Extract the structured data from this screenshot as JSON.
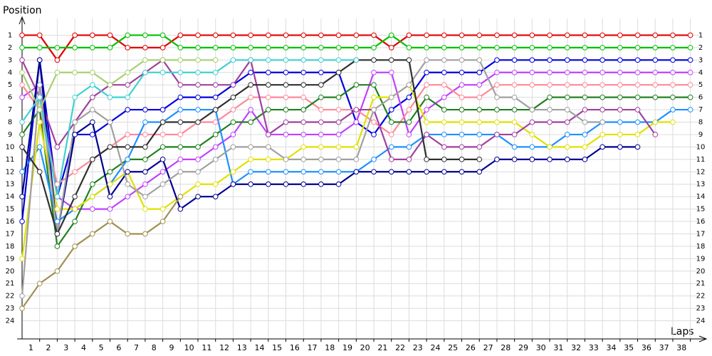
{
  "chart_data": {
    "type": "line",
    "ylabel": "Position",
    "xlabel": "Laps",
    "xlim": [
      0,
      38.5
    ],
    "ylim": [
      0,
      25
    ],
    "inverted_y": true,
    "grid": true,
    "xticks": [
      {
        "value": 0.5,
        "label": "1"
      },
      {
        "value": 1.5,
        "label": "2"
      },
      {
        "value": 2.5,
        "label": "3"
      },
      {
        "value": 3.5,
        "label": "4"
      },
      {
        "value": 4.5,
        "label": "5"
      },
      {
        "value": 5.5,
        "label": "6"
      },
      {
        "value": 6.5,
        "label": "7"
      },
      {
        "value": 7.5,
        "label": "8"
      },
      {
        "value": 8.5,
        "label": "9"
      },
      {
        "value": 9.5,
        "label": "10"
      },
      {
        "value": 10.5,
        "label": "11"
      },
      {
        "value": 11.5,
        "label": "12"
      },
      {
        "value": 12.5,
        "label": "13"
      },
      {
        "value": 13.5,
        "label": "14"
      },
      {
        "value": 14.5,
        "label": "15"
      },
      {
        "value": 15.5,
        "label": "16"
      },
      {
        "value": 16.5,
        "label": "17"
      },
      {
        "value": 17.5,
        "label": "18"
      },
      {
        "value": 18.5,
        "label": "19"
      },
      {
        "value": 19.5,
        "label": "20"
      },
      {
        "value": 20.5,
        "label": "21"
      },
      {
        "value": 21.5,
        "label": "22"
      },
      {
        "value": 22.5,
        "label": "23"
      },
      {
        "value": 23.5,
        "label": "24"
      },
      {
        "value": 24.5,
        "label": "25"
      },
      {
        "value": 25.5,
        "label": "26"
      },
      {
        "value": 26.5,
        "label": "27"
      },
      {
        "value": 27.5,
        "label": "28"
      },
      {
        "value": 28.5,
        "label": "29"
      },
      {
        "value": 29.5,
        "label": "30"
      },
      {
        "value": 30.5,
        "label": "31"
      },
      {
        "value": 31.5,
        "label": "32"
      },
      {
        "value": 32.5,
        "label": "33"
      },
      {
        "value": 33.5,
        "label": "34"
      },
      {
        "value": 34.5,
        "label": "35"
      },
      {
        "value": 35.5,
        "label": "36"
      },
      {
        "value": 36.5,
        "label": "37"
      },
      {
        "value": 37.5,
        "label": "38"
      }
    ],
    "yticks": [
      1,
      2,
      3,
      4,
      5,
      6,
      7,
      8,
      9,
      10,
      11,
      12,
      13,
      14,
      15,
      16,
      17,
      18,
      19,
      20,
      21,
      22,
      23,
      24
    ],
    "x": [
      0,
      1,
      2,
      3,
      4,
      5,
      6,
      7,
      8,
      9,
      10,
      11,
      12,
      13,
      14,
      15,
      16,
      17,
      18,
      19,
      20,
      21,
      22,
      23,
      24,
      25,
      26,
      27,
      28,
      29,
      30,
      31,
      32,
      33,
      34,
      35,
      36,
      37,
      38
    ],
    "series": [
      {
        "color": "#e00000",
        "values": [
          1,
          1,
          3,
          1,
          1,
          1,
          2,
          2,
          2,
          1,
          1,
          1,
          1,
          1,
          1,
          1,
          1,
          1,
          1,
          1,
          1,
          2,
          1,
          1,
          1,
          1,
          1,
          1,
          1,
          1,
          1,
          1,
          1,
          1,
          1,
          1,
          1,
          1,
          1
        ]
      },
      {
        "color": "#00c000",
        "values": [
          2,
          2,
          2,
          2,
          2,
          2,
          1,
          1,
          1,
          2,
          2,
          2,
          2,
          2,
          2,
          2,
          2,
          2,
          2,
          2,
          2,
          1,
          2,
          2,
          2,
          2,
          2,
          2,
          2,
          2,
          2,
          2,
          2,
          2,
          2,
          2,
          2,
          2,
          2
        ]
      },
      {
        "color": "#0000e0",
        "values": [
          16,
          3,
          14,
          9,
          9,
          8,
          7,
          7,
          7,
          6,
          6,
          6,
          5,
          4,
          4,
          4,
          4,
          4,
          4,
          8,
          9,
          7,
          6,
          4,
          4,
          4,
          4,
          3,
          3,
          3,
          3,
          3,
          3,
          3,
          3,
          3,
          3,
          3,
          3
        ]
      },
      {
        "color": "#c040ff",
        "values": [
          6,
          5,
          14,
          15,
          15,
          15,
          14,
          13,
          12,
          11,
          11,
          10,
          9,
          7,
          9,
          9,
          9,
          9,
          9,
          8,
          4,
          4,
          9,
          7,
          6,
          5,
          5,
          4,
          4,
          4,
          4,
          4,
          4,
          4,
          4,
          4,
          4,
          4,
          4
        ]
      },
      {
        "color": "#ff8899",
        "values": [
          5,
          7,
          13,
          12,
          11,
          10,
          9,
          9,
          9,
          9,
          8,
          8,
          7,
          6,
          6,
          6,
          6,
          7,
          7,
          7,
          8,
          9,
          7,
          5,
          5,
          6,
          6,
          5,
          5,
          5,
          5,
          5,
          5,
          5,
          5,
          5,
          5,
          5,
          5
        ]
      },
      {
        "color": "#208020",
        "values": [
          9,
          7,
          18,
          16,
          13,
          12,
          11,
          11,
          10,
          10,
          10,
          9,
          8,
          8,
          7,
          7,
          7,
          6,
          6,
          5,
          5,
          8,
          8,
          6,
          7,
          7,
          7,
          7,
          7,
          7,
          6,
          6,
          6,
          6,
          6,
          6,
          6,
          6,
          6
        ]
      },
      {
        "color": "#1e90ff",
        "values": [
          12,
          10,
          16,
          15,
          14,
          13,
          11,
          8,
          8,
          7,
          7,
          7,
          13,
          12,
          12,
          12,
          12,
          12,
          12,
          12,
          11,
          10,
          10,
          9,
          9,
          9,
          9,
          9,
          10,
          10,
          10,
          9,
          9,
          8,
          8,
          8,
          8,
          7,
          7
        ]
      },
      {
        "color": "#e0e000",
        "values": [
          19,
          8,
          15,
          15,
          14,
          13,
          12,
          15,
          15,
          14,
          13,
          13,
          12,
          11,
          11,
          11,
          10,
          10,
          10,
          10,
          6,
          6,
          5,
          8,
          8,
          8,
          8,
          8,
          8,
          9,
          10,
          10,
          10,
          9,
          9,
          9,
          8,
          8,
          null
        ]
      },
      {
        "color": "#a040a0",
        "values": [
          3,
          6,
          10,
          8,
          6,
          5,
          5,
          4,
          3,
          5,
          5,
          5,
          5,
          3,
          9,
          8,
          8,
          8,
          8,
          7,
          7,
          11,
          11,
          9,
          10,
          10,
          10,
          9,
          9,
          8,
          8,
          8,
          7,
          7,
          7,
          7,
          9,
          null,
          null
        ]
      },
      {
        "color": "#000090",
        "values": [
          14,
          3,
          17,
          9,
          8,
          14,
          12,
          12,
          11,
          15,
          14,
          14,
          13,
          13,
          13,
          13,
          13,
          13,
          13,
          12,
          12,
          12,
          12,
          12,
          12,
          12,
          12,
          11,
          11,
          11,
          11,
          11,
          11,
          10,
          10,
          10,
          null,
          null,
          null
        ]
      },
      {
        "color": "#a0a0a0",
        "values": [
          22,
          5,
          17,
          8,
          7,
          8,
          13,
          14,
          13,
          12,
          12,
          11,
          10,
          10,
          10,
          11,
          11,
          11,
          11,
          11,
          7,
          6,
          5,
          3,
          3,
          3,
          3,
          6,
          6,
          7,
          7,
          7,
          8,
          8,
          null,
          null,
          null,
          null,
          null
        ]
      },
      {
        "color": "#303030",
        "values": [
          10,
          12,
          17,
          14,
          11,
          10,
          10,
          10,
          8,
          8,
          8,
          7,
          6,
          5,
          5,
          5,
          5,
          5,
          4,
          3,
          3,
          3,
          3,
          11,
          11,
          11,
          11,
          null,
          null,
          null,
          null,
          null,
          null,
          null,
          null,
          null,
          null,
          null,
          null
        ]
      },
      {
        "color": "#40d0d0",
        "values": [
          8,
          6,
          14,
          6,
          5,
          6,
          6,
          4,
          4,
          4,
          4,
          4,
          3,
          3,
          3,
          3,
          3,
          3,
          3,
          3,
          null,
          null,
          null,
          null,
          null,
          null,
          null,
          null,
          null,
          null,
          null,
          null,
          null,
          null,
          null,
          null,
          null,
          null,
          null
        ]
      },
      {
        "color": "#a8d070",
        "values": [
          4,
          7,
          4,
          4,
          4,
          5,
          4,
          3,
          3,
          3,
          3,
          3,
          null,
          null,
          null,
          null,
          null,
          null,
          null,
          null,
          null,
          null,
          null,
          null,
          null,
          null,
          null,
          null,
          null,
          null,
          null,
          null,
          null,
          null,
          null,
          null,
          null,
          null,
          null
        ]
      },
      {
        "color": "#a09050",
        "values": [
          23,
          21,
          20,
          18,
          17,
          16,
          17,
          17,
          16,
          14,
          null,
          null,
          null,
          null,
          null,
          null,
          null,
          null,
          null,
          null,
          null,
          null,
          null,
          null,
          null,
          null,
          null,
          null,
          null,
          null,
          null,
          null,
          null,
          null,
          null,
          null,
          null,
          null,
          null
        ]
      }
    ]
  }
}
